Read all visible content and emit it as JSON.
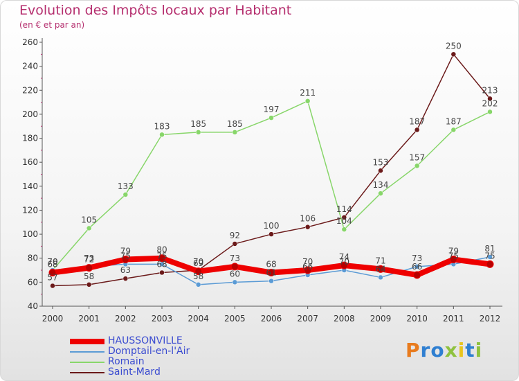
{
  "title": "Evolution des Impôts locaux par Habitant",
  "subtitle": "(en € et par an)",
  "logo_text": "Proxiti",
  "chart_data": {
    "type": "line",
    "title": "Evolution des Impôts locaux par Habitant",
    "subtitle": "(en € et par an)",
    "xlabel": "",
    "ylabel": "",
    "x": [
      "2000",
      "2001",
      "2002",
      "2003",
      "2004",
      "2005",
      "2006",
      "2007",
      "2008",
      "2009",
      "2010",
      "2011",
      "2012"
    ],
    "ylim": [
      40,
      260
    ],
    "yticks": [
      "40",
      "60",
      "80",
      "100",
      "120",
      "140",
      "160",
      "180",
      "200",
      "220",
      "240",
      "260"
    ],
    "grid": false,
    "legend_position": "bottom-left",
    "series": [
      {
        "name": "HAUSSONVILLE",
        "color": "#ee0000",
        "values": [
          68,
          72,
          79,
          80,
          69,
          73,
          68,
          70,
          74,
          71,
          66,
          79,
          75
        ],
        "labels": [
          "68",
          "72",
          "79",
          "80",
          "69",
          "73",
          "68",
          "70",
          "74",
          "71",
          "66",
          "79",
          "75"
        ]
      },
      {
        "name": "Domptail-en-l'Air",
        "color": "#5b9bd5",
        "values": [
          70,
          73,
          75,
          75,
          58,
          60,
          61,
          66,
          70,
          64,
          73,
          75,
          81
        ],
        "labels": [
          "70",
          "73",
          "75",
          "75",
          "58",
          "60",
          "61",
          "66",
          "70",
          "64",
          "73",
          "75",
          "81"
        ]
      },
      {
        "name": "Romain",
        "color": "#88d66a",
        "values": [
          70,
          105,
          133,
          183,
          185,
          185,
          197,
          211,
          104,
          134,
          157,
          187,
          202
        ],
        "labels": [
          "70",
          "105",
          "133",
          "183",
          "185",
          "185",
          "197",
          "211",
          "104",
          "134",
          "157",
          "187",
          "202"
        ]
      },
      {
        "name": "Saint-Mard",
        "color": "#6b1a1a",
        "values": [
          57,
          58,
          63,
          68,
          70,
          92,
          100,
          106,
          114,
          153,
          187,
          250,
          213
        ],
        "labels": [
          "57",
          "58",
          "63",
          "68",
          "70",
          "92",
          "100",
          "106",
          "114",
          "153",
          "187",
          "250",
          "213"
        ]
      }
    ]
  },
  "logo_colors": [
    "#e87b1e",
    "#2f7fd1",
    "#2f7fd1",
    "#8fc23f",
    "#e8c41e",
    "#2f7fd1",
    "#8fc23f"
  ]
}
